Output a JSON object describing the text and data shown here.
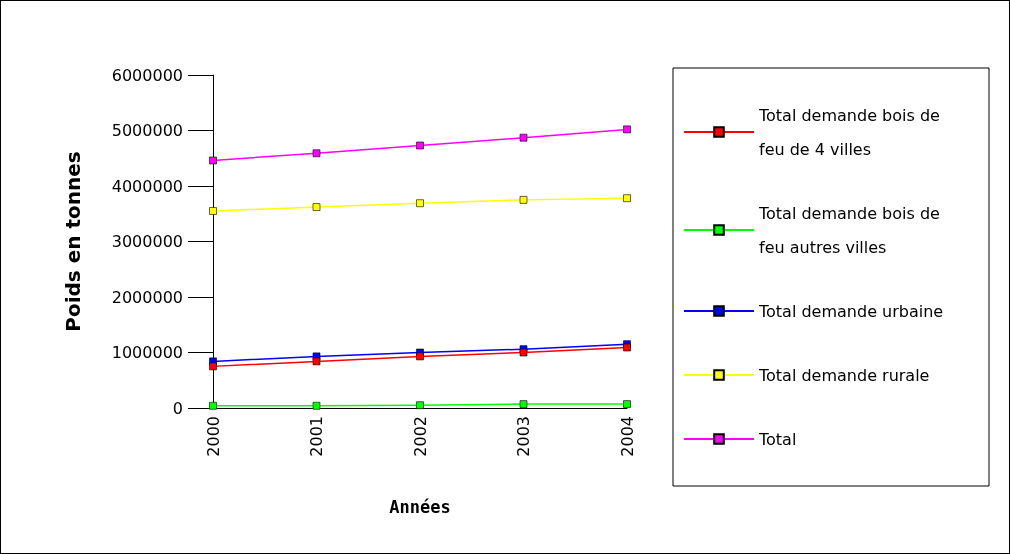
{
  "chart_data": {
    "type": "line",
    "xlabel": "Années",
    "ylabel": "Poids en tonnes",
    "categories": [
      "2000",
      "2001",
      "2002",
      "2003",
      "2004"
    ],
    "series": [
      {
        "name": "Total demande bois de feu de 4 villes",
        "color": "#ff0000",
        "values": [
          750000,
          840000,
          930000,
          1000000,
          1090000
        ]
      },
      {
        "name": "Total demande bois de feu autres villes",
        "color": "#00ff00",
        "values": [
          40000,
          40000,
          50000,
          70000,
          70000
        ]
      },
      {
        "name": "Total demande urbaine",
        "color": "#0000ff",
        "values": [
          840000,
          930000,
          1000000,
          1060000,
          1150000
        ]
      },
      {
        "name": "Total demande rurale",
        "color": "#ffff00",
        "values": [
          3550000,
          3620000,
          3690000,
          3750000,
          3780000
        ]
      },
      {
        "name": "Total",
        "color": "#ff00ff",
        "values": [
          4460000,
          4590000,
          4730000,
          4870000,
          5020000
        ]
      }
    ],
    "ylim": [
      0,
      6000000
    ],
    "yticks": [
      0,
      1000000,
      2000000,
      3000000,
      4000000,
      5000000,
      6000000
    ],
    "grid": false,
    "legend": "right",
    "marker": "square",
    "line_style": "solid"
  }
}
